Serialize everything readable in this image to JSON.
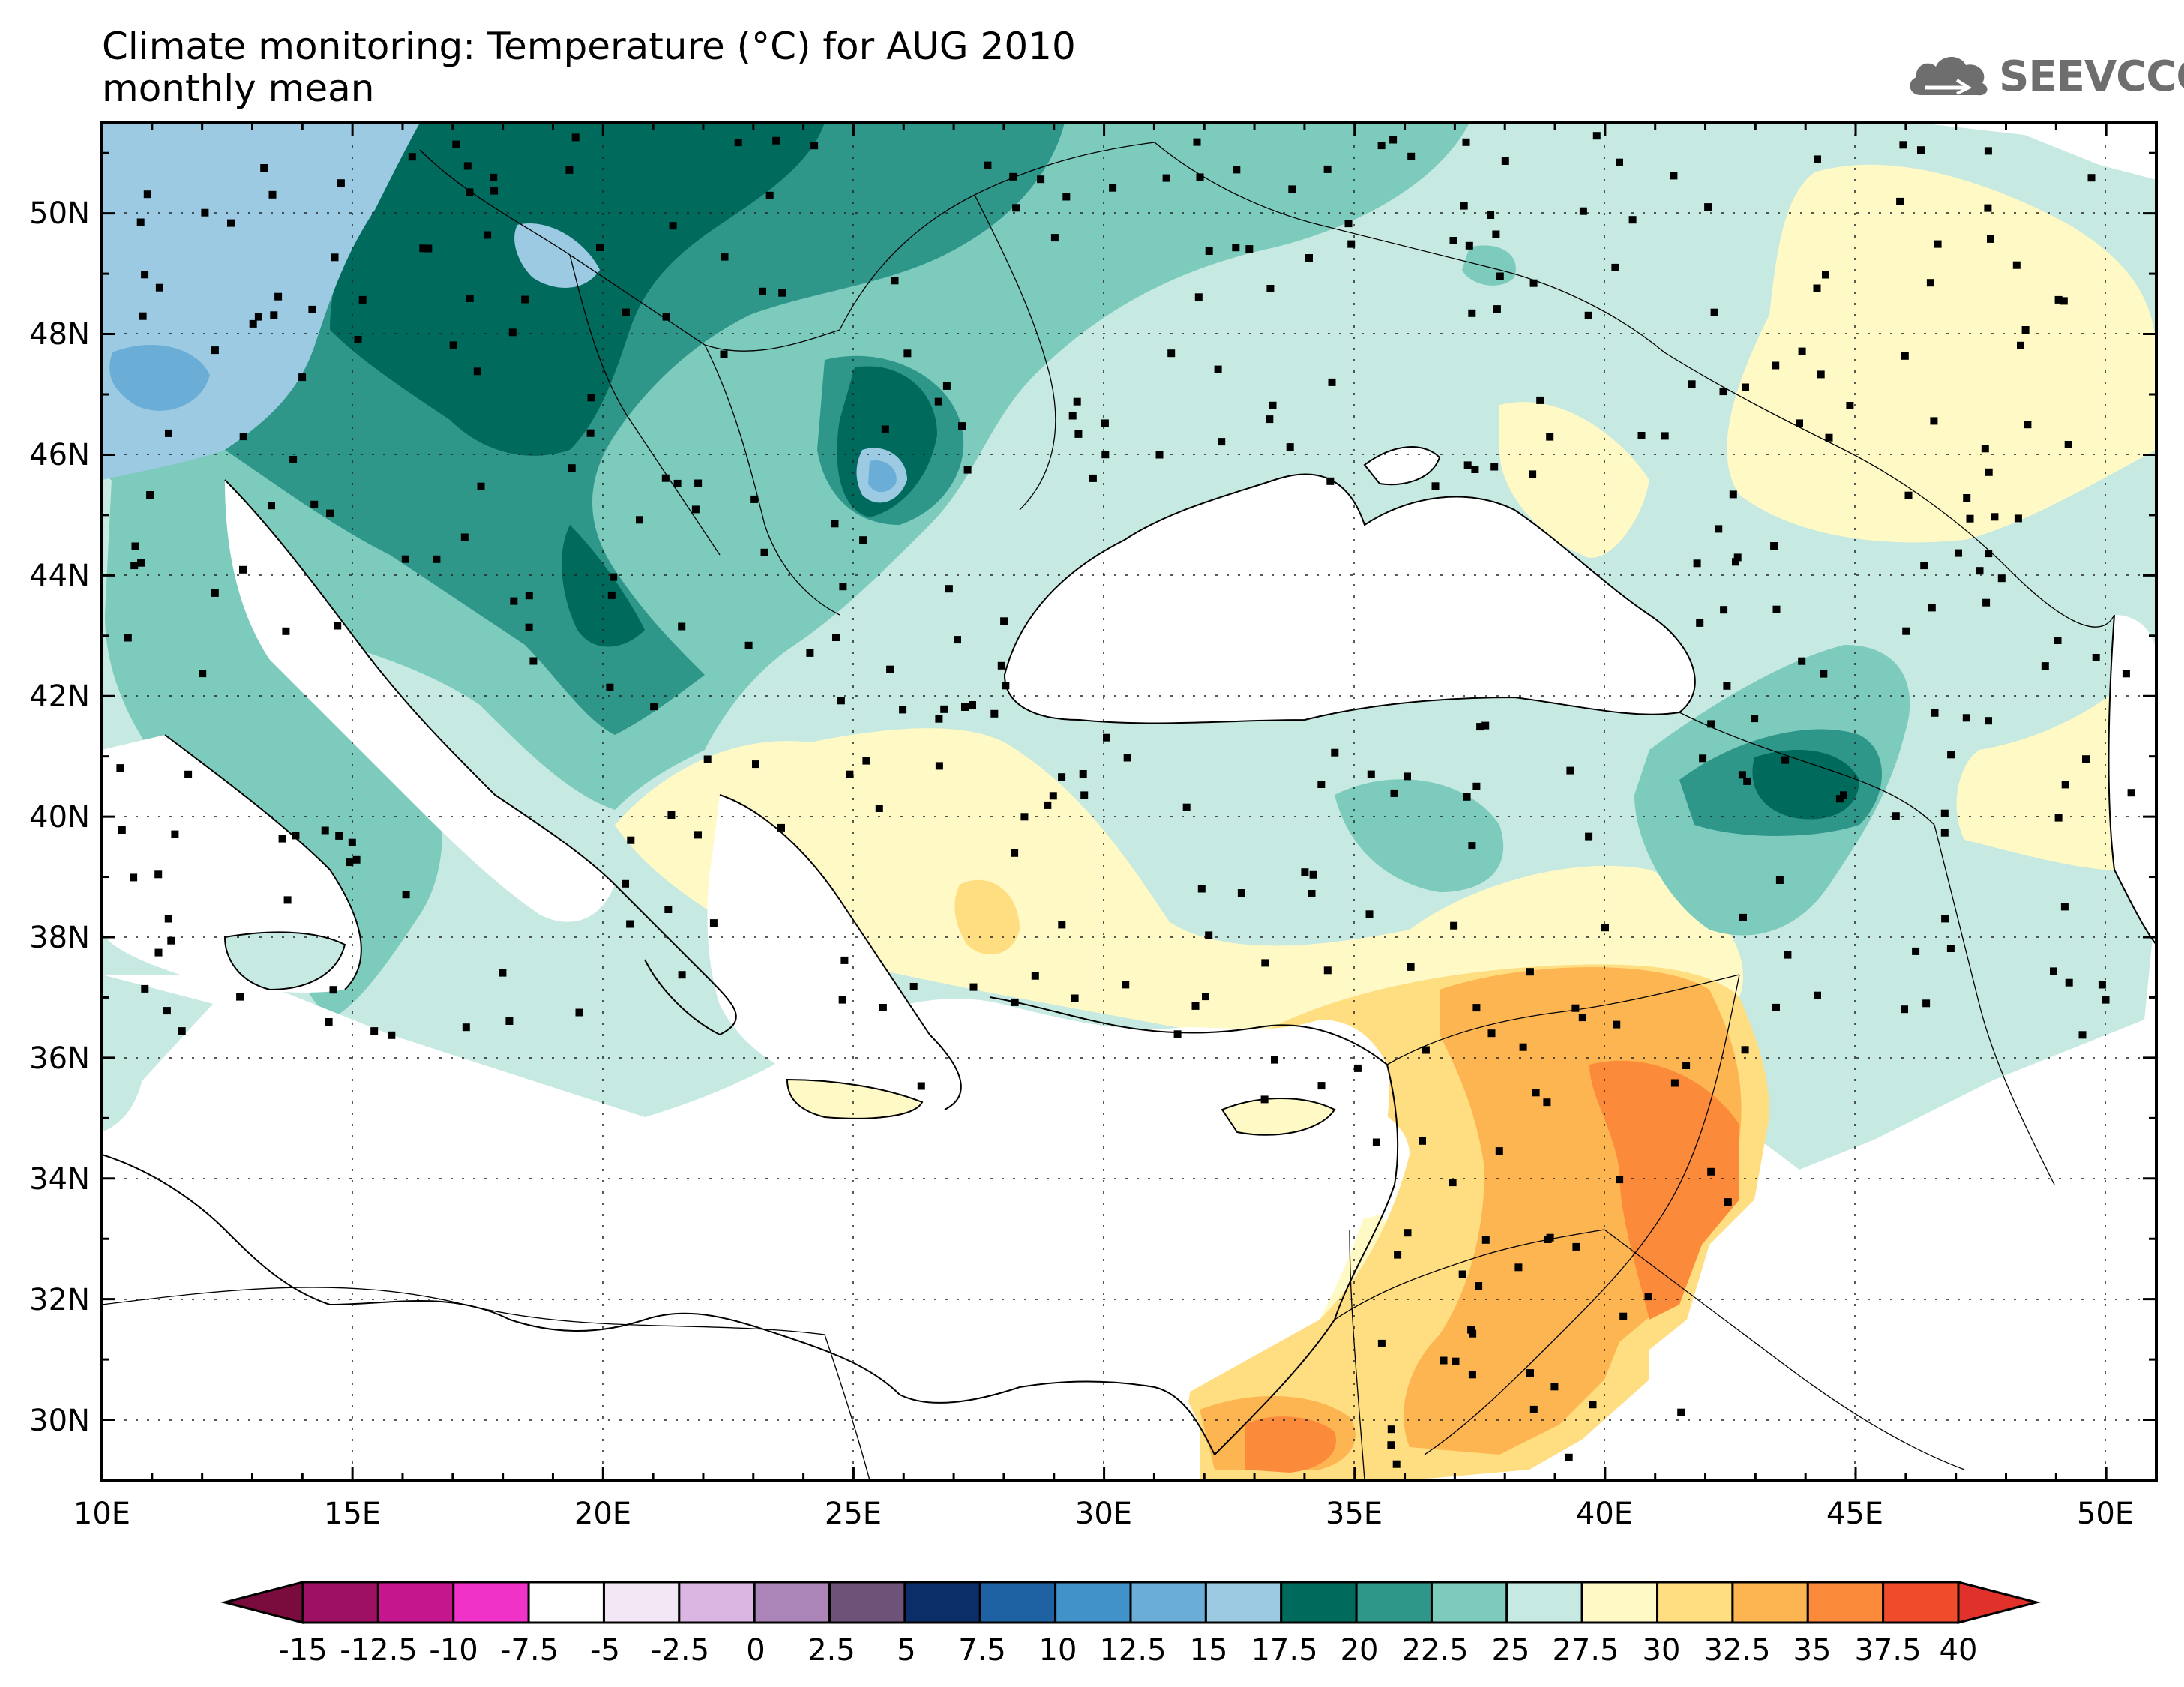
{
  "title": {
    "line1": "Climate monitoring: Temperature (°C) for AUG 2010",
    "line2": "monthly mean"
  },
  "logo": {
    "text": "SEEVCCC",
    "icon": "cloud-icon"
  },
  "map": {
    "lon_range": [
      10,
      51
    ],
    "lat_range": [
      29,
      51.5
    ],
    "x_ticks": [
      "10E",
      "15E",
      "20E",
      "25E",
      "30E",
      "35E",
      "40E",
      "45E",
      "50E"
    ],
    "y_ticks": [
      "30N",
      "32N",
      "34N",
      "36N",
      "38N",
      "40N",
      "42N",
      "44N",
      "46N",
      "48N",
      "50N"
    ]
  },
  "colorbar": {
    "labels": [
      "-15",
      "-12.5",
      "-10",
      "-7.5",
      "-5",
      "-2.5",
      "0",
      "2.5",
      "5",
      "7.5",
      "10",
      "12.5",
      "15",
      "17.5",
      "20",
      "22.5",
      "25",
      "27.5",
      "30",
      "32.5",
      "35",
      "37.5",
      "40"
    ],
    "colors": [
      "#9e1063",
      "#c6168d",
      "#f032c8",
      "#ffffff",
      "#f3e6f5",
      "#dbb6e2",
      "#ac85b8",
      "#6e5277",
      "#0b2e68",
      "#1e62a3",
      "#4192c8",
      "#6aaed8",
      "#9ccae2",
      "#006a5d",
      "#2f968a",
      "#7dcbbd",
      "#c6e9e2",
      "#fff9c6",
      "#ffde81",
      "#fdb552",
      "#fb8a3b",
      "#f04c2c"
    ],
    "low_end_color": "#7a0c3d",
    "high_end_color": "#e0322a"
  }
}
